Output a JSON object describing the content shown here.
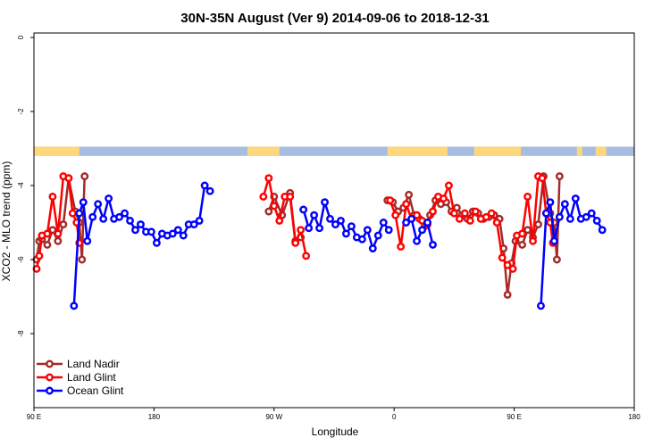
{
  "chart_data": {
    "type": "line",
    "title": "30N-35N August (Ver 9)   2014-09-06 to 2018-12-31",
    "xlabel": "Longitude",
    "ylabel": "XCO2 - MLO trend (ppm)",
    "xlim": [
      90,
      540
    ],
    "ylim": [
      -10,
      0
    ],
    "x_ticks": [
      {
        "value": 90,
        "label": "90 E"
      },
      {
        "value": 180,
        "label": "180"
      },
      {
        "value": 270,
        "label": "90 W"
      },
      {
        "value": 360,
        "label": "0"
      },
      {
        "value": 450,
        "label": "90 E"
      },
      {
        "value": 540,
        "label": "180"
      }
    ],
    "y_ticks": [
      {
        "value": 0,
        "label": "0"
      },
      {
        "value": -2,
        "label": "-2"
      },
      {
        "value": -4,
        "label": "-4"
      },
      {
        "value": -6,
        "label": "-6"
      },
      {
        "value": -8,
        "label": "-8"
      }
    ],
    "grid": false,
    "legend_position": "bottom-left",
    "land_mask": {
      "y_range": [
        -3.2,
        -2.95
      ],
      "ocean_color": "#a7bde0",
      "land_color": "#fcd77c",
      "land_segments": [
        [
          90,
          124
        ],
        [
          250,
          274
        ],
        [
          355,
          400
        ],
        [
          420,
          455
        ],
        [
          497,
          501
        ],
        [
          511,
          519
        ]
      ]
    },
    "series": [
      {
        "name": "Land Nadir",
        "color": "#a52a2a",
        "points": [
          [
            92,
            -6.0
          ],
          [
            94,
            -5.5
          ],
          [
            96,
            -5.45
          ],
          [
            100,
            -5.6
          ],
          [
            104,
            -5.2
          ],
          [
            108,
            -5.5
          ],
          [
            112,
            -5.05
          ],
          [
            116,
            -3.8
          ],
          [
            121,
            -4.7
          ],
          [
            124,
            -5.0
          ],
          [
            126,
            -6.0
          ],
          [
            128,
            -3.75
          ],
          [
            266,
            -4.7
          ],
          [
            270,
            -4.3
          ],
          [
            276,
            -4.8
          ],
          [
            282,
            -4.2
          ],
          [
            286,
            -5.5
          ],
          [
            290,
            -5.4
          ],
          [
            355,
            -4.4
          ],
          [
            359,
            -4.45
          ],
          [
            363,
            -4.7
          ],
          [
            367,
            -4.6
          ],
          [
            371,
            -4.25
          ],
          [
            375,
            -4.8
          ],
          [
            379,
            -4.9
          ],
          [
            383,
            -5.1
          ],
          [
            387,
            -4.8
          ],
          [
            391,
            -4.4
          ],
          [
            395,
            -4.5
          ],
          [
            399,
            -4.45
          ],
          [
            403,
            -4.7
          ],
          [
            407,
            -4.6
          ],
          [
            411,
            -4.8
          ],
          [
            415,
            -4.9
          ],
          [
            419,
            -4.7
          ],
          [
            423,
            -4.75
          ],
          [
            427,
            -4.9
          ],
          [
            431,
            -4.85
          ],
          [
            435,
            -4.8
          ],
          [
            439,
            -4.9
          ],
          [
            442,
            -5.7
          ],
          [
            445,
            -6.95
          ],
          [
            448,
            -6.1
          ],
          [
            451,
            -5.5
          ],
          [
            456,
            -5.6
          ],
          [
            460,
            -5.2
          ],
          [
            464,
            -5.4
          ],
          [
            468,
            -5.05
          ],
          [
            472,
            -3.75
          ],
          [
            477,
            -4.75
          ],
          [
            480,
            -5.0
          ],
          [
            482,
            -6.0
          ],
          [
            484,
            -3.75
          ]
        ]
      },
      {
        "name": "Land Glint",
        "color": "#ff0000",
        "points": [
          [
            92,
            -6.25
          ],
          [
            94,
            -5.9
          ],
          [
            96,
            -5.35
          ],
          [
            100,
            -5.3
          ],
          [
            104,
            -4.3
          ],
          [
            108,
            -5.3
          ],
          [
            112,
            -3.75
          ],
          [
            116,
            -3.8
          ],
          [
            119,
            -4.75
          ],
          [
            122,
            -5.0
          ],
          [
            124,
            -5.55
          ],
          [
            262,
            -4.3
          ],
          [
            266,
            -3.8
          ],
          [
            270,
            -4.55
          ],
          [
            274,
            -4.95
          ],
          [
            278,
            -4.3
          ],
          [
            282,
            -4.3
          ],
          [
            286,
            -5.55
          ],
          [
            290,
            -5.2
          ],
          [
            294,
            -5.9
          ],
          [
            357,
            -4.4
          ],
          [
            361,
            -4.8
          ],
          [
            365,
            -5.65
          ],
          [
            369,
            -4.5
          ],
          [
            373,
            -4.9
          ],
          [
            377,
            -4.8
          ],
          [
            381,
            -4.95
          ],
          [
            385,
            -5.05
          ],
          [
            389,
            -4.7
          ],
          [
            393,
            -4.3
          ],
          [
            397,
            -4.35
          ],
          [
            401,
            -4.0
          ],
          [
            405,
            -4.75
          ],
          [
            409,
            -4.9
          ],
          [
            413,
            -4.75
          ],
          [
            417,
            -4.95
          ],
          [
            421,
            -4.7
          ],
          [
            425,
            -4.9
          ],
          [
            429,
            -4.85
          ],
          [
            433,
            -4.75
          ],
          [
            437,
            -5.0
          ],
          [
            441,
            -5.95
          ],
          [
            445,
            -6.15
          ],
          [
            449,
            -6.25
          ],
          [
            452,
            -5.35
          ],
          [
            456,
            -5.3
          ],
          [
            460,
            -4.3
          ],
          [
            464,
            -5.5
          ],
          [
            468,
            -3.75
          ],
          [
            471,
            -3.8
          ],
          [
            474,
            -4.75
          ],
          [
            477,
            -5.0
          ],
          [
            479,
            -5.55
          ]
        ]
      },
      {
        "name": "Ocean Glint",
        "color": "#0000ff",
        "points": [
          [
            120,
            -7.25
          ],
          [
            124,
            -4.75
          ],
          [
            127,
            -4.45
          ],
          [
            130,
            -5.5
          ],
          [
            134,
            -4.85
          ],
          [
            138,
            -4.5
          ],
          [
            142,
            -4.9
          ],
          [
            146,
            -4.35
          ],
          [
            150,
            -4.9
          ],
          [
            154,
            -4.85
          ],
          [
            158,
            -4.75
          ],
          [
            162,
            -4.95
          ],
          [
            166,
            -5.2
          ],
          [
            170,
            -5.05
          ],
          [
            174,
            -5.25
          ],
          [
            178,
            -5.25
          ],
          [
            182,
            -5.55
          ],
          [
            186,
            -5.3
          ],
          [
            190,
            -5.35
          ],
          [
            194,
            -5.3
          ],
          [
            198,
            -5.2
          ],
          [
            202,
            -5.35
          ],
          [
            206,
            -5.05
          ],
          [
            210,
            -5.05
          ],
          [
            214,
            -4.95
          ],
          [
            218,
            -4.0
          ],
          [
            222,
            -4.15
          ],
          [
            292,
            -4.65
          ],
          [
            296,
            -5.15
          ],
          [
            300,
            -4.8
          ],
          [
            304,
            -5.15
          ],
          [
            308,
            -4.45
          ],
          [
            312,
            -4.9
          ],
          [
            316,
            -5.05
          ],
          [
            320,
            -4.95
          ],
          [
            324,
            -5.3
          ],
          [
            328,
            -5.1
          ],
          [
            332,
            -5.4
          ],
          [
            336,
            -5.45
          ],
          [
            340,
            -5.2
          ],
          [
            344,
            -5.7
          ],
          [
            348,
            -5.35
          ],
          [
            352,
            -5.0
          ],
          [
            356,
            -5.2
          ],
          [
            369,
            -5.0
          ],
          [
            373,
            -4.9
          ],
          [
            377,
            -5.5
          ],
          [
            381,
            -5.2
          ],
          [
            385,
            -5.0
          ],
          [
            389,
            -5.6
          ],
          [
            470,
            -7.25
          ],
          [
            474,
            -4.75
          ],
          [
            477,
            -4.45
          ],
          [
            480,
            -5.5
          ],
          [
            484,
            -4.85
          ],
          [
            488,
            -4.5
          ],
          [
            492,
            -4.9
          ],
          [
            496,
            -4.35
          ],
          [
            500,
            -4.9
          ],
          [
            504,
            -4.85
          ],
          [
            508,
            -4.75
          ],
          [
            512,
            -4.95
          ],
          [
            516,
            -5.2
          ]
        ]
      }
    ]
  }
}
